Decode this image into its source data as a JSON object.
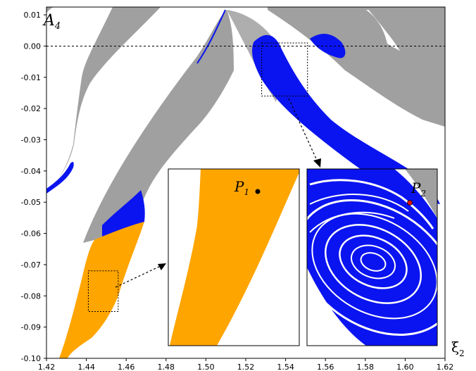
{
  "chart_data": {
    "type": "scatter",
    "title": "",
    "panel_label": {
      "main": "A",
      "sub": "4"
    },
    "xlabel": {
      "main": "ξ",
      "sub": "2"
    },
    "ylabel": "",
    "xlim": [
      1.42,
      1.62
    ],
    "ylim": [
      -0.1,
      0.0125
    ],
    "x_ticks": [
      "1.42",
      "1.44",
      "1.46",
      "1.48",
      "1.50",
      "1.52",
      "1.54",
      "1.56",
      "1.58",
      "1.60",
      "1.62"
    ],
    "y_ticks": [
      "0.01",
      "0.00",
      "-0.01",
      "-0.02",
      "-0.03",
      "-0.04",
      "-0.05",
      "-0.06",
      "-0.07",
      "-0.08",
      "-0.09",
      "-0.10"
    ],
    "reference_line_y": 0.0,
    "colors": {
      "gray": "#a0a0a0",
      "blue": "#0a14f0",
      "orange": "#ffa500",
      "black": "#000000",
      "red": "#e01010"
    },
    "zoom_boxes": [
      {
        "name": "lower-left",
        "x": [
          1.441,
          1.456
        ],
        "y": [
          -0.085,
          -0.072
        ]
      },
      {
        "name": "upper-right",
        "x": [
          1.528,
          1.551
        ],
        "y": [
          -0.016,
          0.001
        ]
      }
    ],
    "insets": [
      {
        "name": "inset-1",
        "point_label": {
          "main": "P",
          "sub": "1"
        },
        "color": "orange"
      },
      {
        "name": "inset-2",
        "point_label": {
          "main": "P",
          "sub": "2"
        },
        "color": "blue"
      }
    ]
  }
}
